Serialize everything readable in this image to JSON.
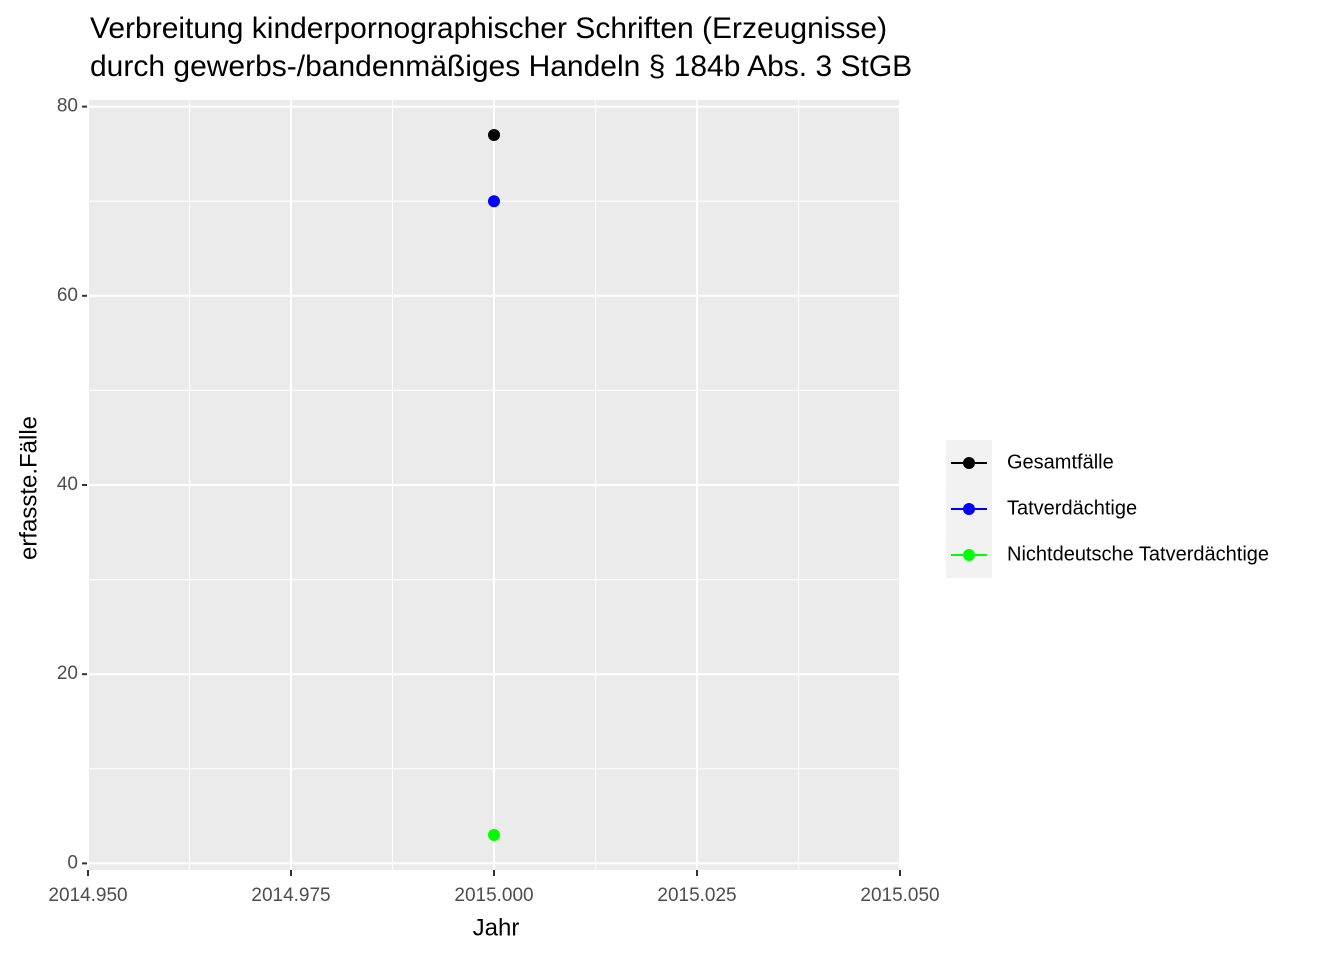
{
  "chart_data": {
    "type": "line",
    "title": [
      "Verbreitung kinderpornographischer Schriften (Erzeugnisse)",
      "durch gewerbs-/bandenmäßiges Handeln § 184b Abs. 3 StGB"
    ],
    "x_label": "Jahr",
    "y_label": "erfasste.Fälle",
    "x": [
      2015
    ],
    "series": [
      {
        "name": "Gesamtfälle",
        "color": "#000000",
        "values": [
          77
        ]
      },
      {
        "name": "Tatverdächtige",
        "color": "#0000ff",
        "values": [
          70
        ]
      },
      {
        "name": "Nichtdeutsche Tatverdächtige",
        "color": "#00ff00",
        "values": [
          3
        ]
      }
    ],
    "xlim": [
      2014.95,
      2015.05
    ],
    "xticks": [
      {
        "value": 2014.95,
        "label": "2014.950"
      },
      {
        "value": 2014.975,
        "label": "2014.975"
      },
      {
        "value": 2015,
        "label": "2015.000"
      },
      {
        "value": 2015.025,
        "label": "2015.025"
      },
      {
        "value": 2015.05,
        "label": "2015.050"
      }
    ],
    "ylim": [
      -0.7,
      80.7
    ],
    "yticks": [
      0,
      20,
      40,
      60,
      80
    ],
    "grid": true,
    "legend": "right"
  }
}
